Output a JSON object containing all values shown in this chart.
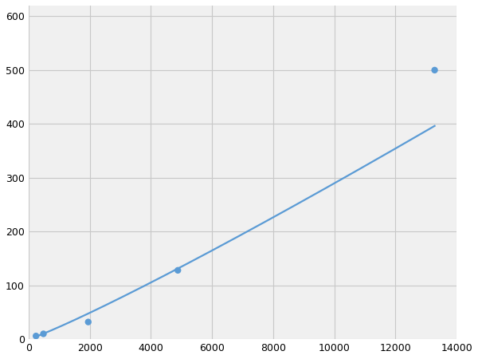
{
  "x_points": [
    244,
    488,
    1953,
    4883,
    13281
  ],
  "y_points": [
    6,
    10,
    32,
    128,
    500
  ],
  "line_color": "#5b9bd5",
  "marker_color": "#5b9bd5",
  "marker_size": 6,
  "line_width": 1.6,
  "xlim": [
    0,
    14000
  ],
  "ylim": [
    0,
    620
  ],
  "xticks": [
    0,
    2000,
    4000,
    6000,
    8000,
    10000,
    12000,
    14000
  ],
  "yticks": [
    0,
    100,
    200,
    300,
    400,
    500,
    600
  ],
  "grid_color": "#c8c8c8",
  "background_color": "#f0f0f0",
  "figure_background": "#ffffff"
}
